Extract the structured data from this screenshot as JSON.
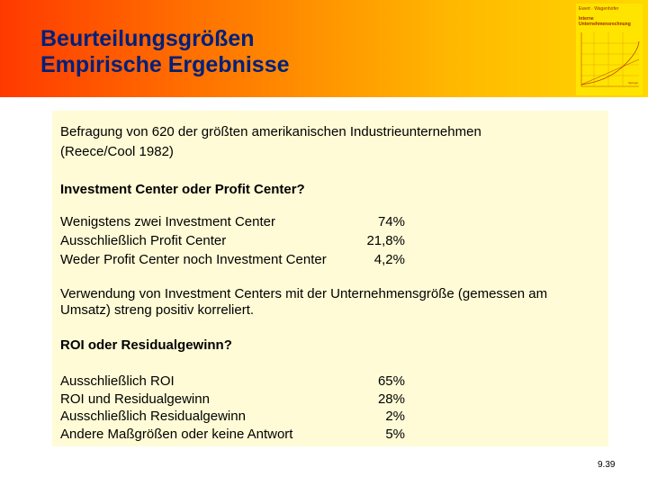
{
  "header": {
    "title_line1": "Beurteilungsgrößen",
    "title_line2": "Empirische Ergebnisse"
  },
  "book_cover": {
    "author": "Ewert · Wagenhofer",
    "title_line1": "Interne",
    "title_line2": "Unternehmensrechnung",
    "publisher": "Springer"
  },
  "content": {
    "survey_line1": "Befragung von 620 der größten amerikanischen Industrieunternehmen",
    "survey_line2": "(Reece/Cool 1982)",
    "question1": "Investment Center oder Profit Center?",
    "q1_rows": [
      {
        "label": "Wenigstens zwei Investment Center",
        "value": "74%"
      },
      {
        "label": "Ausschließlich Profit Center",
        "value": "21,8%"
      },
      {
        "label": "Weder Profit Center noch Investment Center",
        "value": "4,2%"
      }
    ],
    "note_line1": "Verwendung von Investment Centers mit der Unternehmensgröße (gemessen am",
    "note_line2": "Umsatz) streng positiv korreliert.",
    "question2": "ROI oder Residualgewinn?",
    "q2_rows": [
      {
        "label": "Ausschließlich ROI",
        "value": "65%"
      },
      {
        "label": "ROI und Residualgewinn",
        "value": "28%"
      },
      {
        "label": "Ausschließlich Residualgewinn",
        "value": "2%"
      },
      {
        "label": "Andere Maßgrößen oder keine Antwort",
        "value": "5%"
      }
    ]
  },
  "footer": {
    "page_number": "9.39"
  }
}
